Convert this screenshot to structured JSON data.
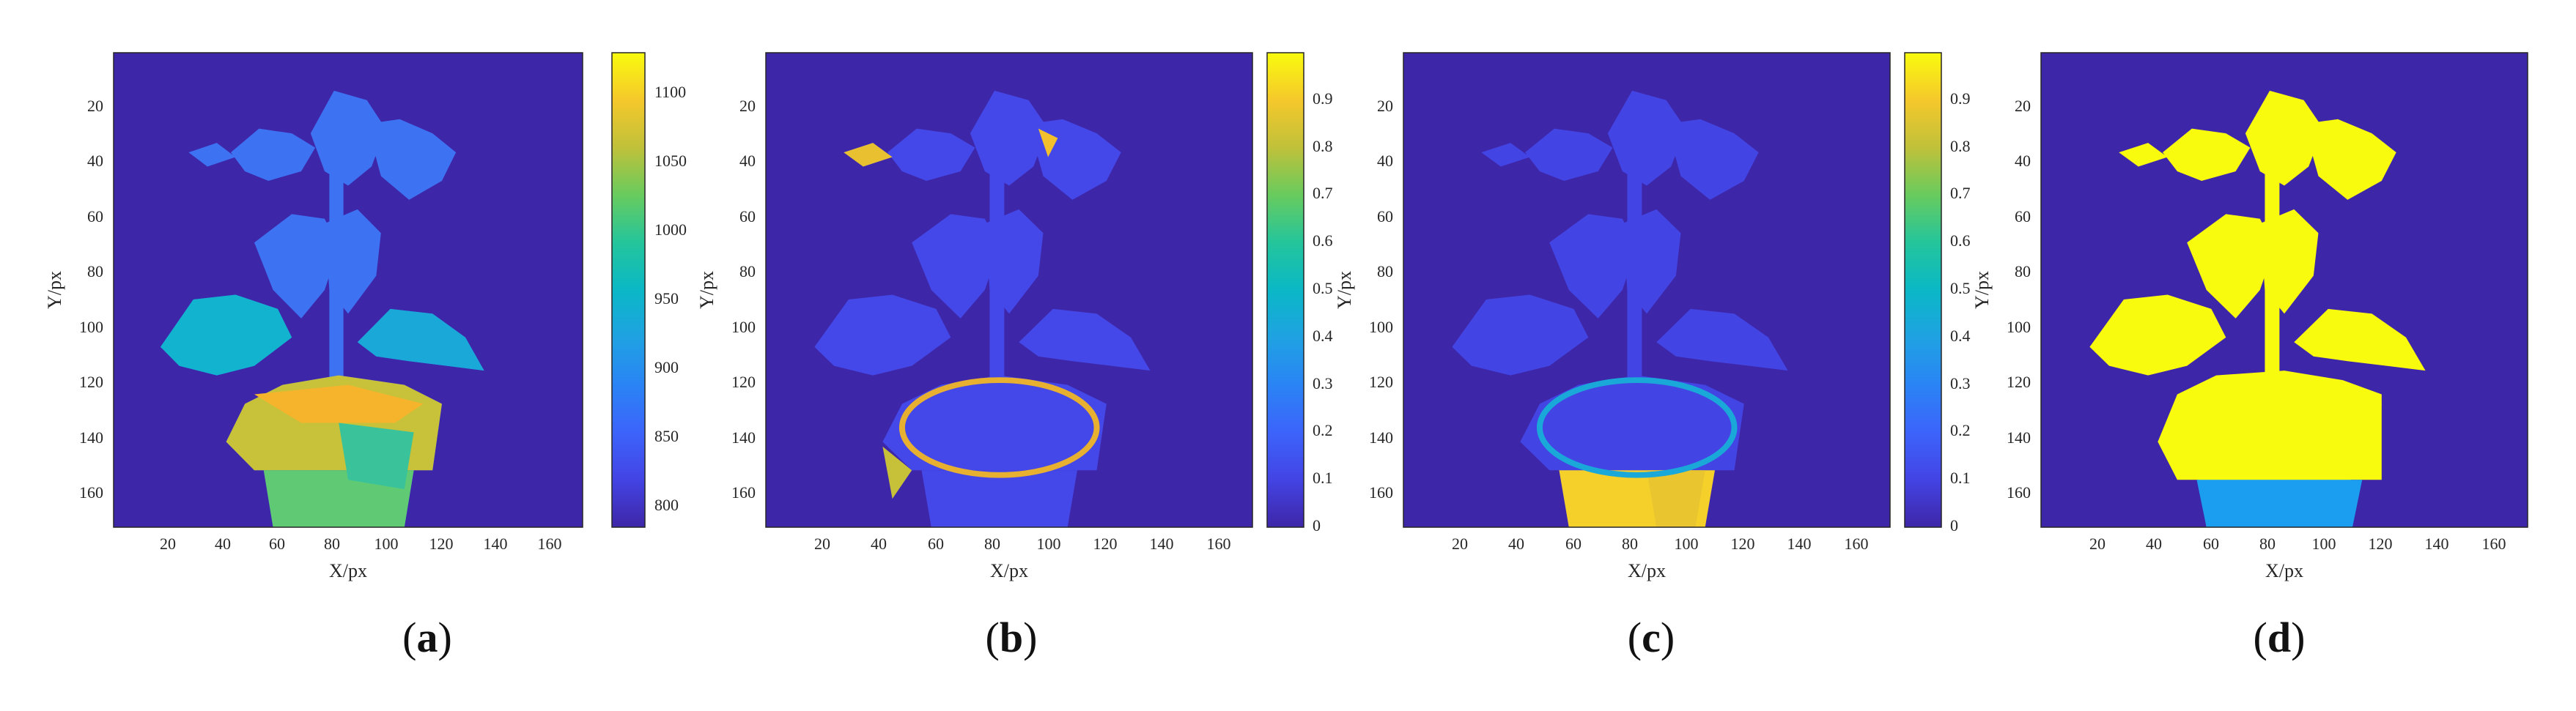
{
  "colors": {
    "background": "#3e26a8",
    "leaf_high": "#f9fb0e",
    "pot_blue": "#1b9df0"
  },
  "panels": [
    {
      "label_open": "(",
      "label_letter": "a",
      "label_close": ")",
      "xlabel": "X/px",
      "ylabel": "Y/px",
      "xticks": [
        "20",
        "40",
        "60",
        "80",
        "100",
        "120",
        "140",
        "160"
      ],
      "yticks": [
        "20",
        "40",
        "60",
        "80",
        "100",
        "120",
        "140",
        "160"
      ],
      "colorbar": {
        "ticks": [
          "800",
          "850",
          "900",
          "950",
          "1000",
          "1050",
          "1100"
        ],
        "min": 790,
        "max": 1135
      }
    },
    {
      "label_open": "(",
      "label_letter": "b",
      "label_close": ")",
      "xlabel": "X/px",
      "ylabel": "Y/px",
      "xticks": [
        "20",
        "40",
        "60",
        "80",
        "100",
        "120",
        "140",
        "160"
      ],
      "yticks": [
        "20",
        "40",
        "60",
        "80",
        "100",
        "120",
        "140",
        "160"
      ],
      "colorbar": {
        "ticks": [
          "0",
          "0.1",
          "0.2",
          "0.3",
          "0.4",
          "0.5",
          "0.6",
          "0.7",
          "0.8",
          "0.9"
        ],
        "min": 0,
        "max": 1
      }
    },
    {
      "label_open": "(",
      "label_letter": "c",
      "label_close": ")",
      "xlabel": "X/px",
      "ylabel": "Y/px",
      "xticks": [
        "20",
        "40",
        "60",
        "80",
        "100",
        "120",
        "140",
        "160"
      ],
      "yticks": [
        "20",
        "40",
        "60",
        "80",
        "100",
        "120",
        "140",
        "160"
      ],
      "colorbar": {
        "ticks": [
          "0",
          "0.1",
          "0.2",
          "0.3",
          "0.4",
          "0.5",
          "0.6",
          "0.7",
          "0.8",
          "0.9"
        ],
        "min": 0,
        "max": 1
      }
    },
    {
      "label_open": "(",
      "label_letter": "d",
      "label_close": ")",
      "xlabel": "X/px",
      "ylabel": "Y/px",
      "xticks": [
        "20",
        "40",
        "60",
        "80",
        "100",
        "120",
        "140",
        "160"
      ],
      "yticks": [
        "20",
        "40",
        "60",
        "80",
        "100",
        "120",
        "140",
        "160"
      ]
    }
  ],
  "chart_data": [
    {
      "type": "heatmap",
      "xlabel": "X/px",
      "ylabel": "Y/px",
      "xlim": [
        0,
        172
      ],
      "ylim": [
        172,
        0
      ],
      "x_ticks": [
        20,
        40,
        60,
        80,
        100,
        120,
        140,
        160
      ],
      "y_ticks": [
        20,
        40,
        60,
        80,
        100,
        120,
        140,
        160
      ],
      "colorbar_range": [
        790,
        1135
      ],
      "colorbar_ticks": [
        800,
        850,
        900,
        950,
        1000,
        1050,
        1100
      ]
    },
    {
      "type": "heatmap",
      "xlabel": "X/px",
      "ylabel": "Y/px",
      "xlim": [
        0,
        172
      ],
      "ylim": [
        172,
        0
      ],
      "x_ticks": [
        20,
        40,
        60,
        80,
        100,
        120,
        140,
        160
      ],
      "y_ticks": [
        20,
        40,
        60,
        80,
        100,
        120,
        140,
        160
      ],
      "colorbar_range": [
        0,
        1
      ],
      "colorbar_ticks": [
        0,
        0.1,
        0.2,
        0.3,
        0.4,
        0.5,
        0.6,
        0.7,
        0.8,
        0.9
      ]
    },
    {
      "type": "heatmap",
      "xlabel": "X/px",
      "ylabel": "Y/px",
      "xlim": [
        0,
        172
      ],
      "ylim": [
        172,
        0
      ],
      "x_ticks": [
        20,
        40,
        60,
        80,
        100,
        120,
        140,
        160
      ],
      "y_ticks": [
        20,
        40,
        60,
        80,
        100,
        120,
        140,
        160
      ],
      "colorbar_range": [
        0,
        1
      ],
      "colorbar_ticks": [
        0,
        0.1,
        0.2,
        0.3,
        0.4,
        0.5,
        0.6,
        0.7,
        0.8,
        0.9
      ]
    },
    {
      "type": "heatmap",
      "xlabel": "X/px",
      "ylabel": "Y/px",
      "xlim": [
        0,
        172
      ],
      "ylim": [
        172,
        0
      ],
      "x_ticks": [
        20,
        40,
        60,
        80,
        100,
        120,
        140,
        160
      ],
      "y_ticks": [
        20,
        40,
        60,
        80,
        100,
        120,
        140,
        160
      ]
    }
  ]
}
